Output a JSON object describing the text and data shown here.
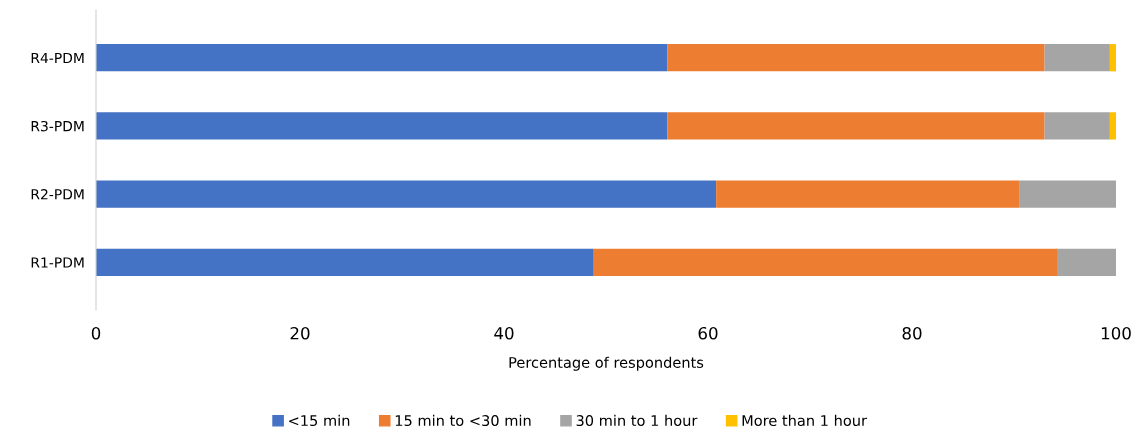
{
  "chart_data": {
    "type": "bar",
    "orientation": "horizontal",
    "stacked": true,
    "categories": [
      "R4-PDM",
      "R3-PDM",
      "R2-PDM",
      "R1-PDM"
    ],
    "series": [
      {
        "name": "<15 min",
        "color": "#4472c4",
        "values": [
          56.0,
          56.0,
          60.8,
          48.8
        ]
      },
      {
        "name": "15 min to <30 min",
        "color": "#ed7d31",
        "values": [
          37.0,
          37.0,
          29.7,
          45.5
        ]
      },
      {
        "name": "30 min to 1 hour",
        "color": "#a5a5a5",
        "values": [
          6.4,
          6.4,
          9.5,
          5.7
        ]
      },
      {
        "name": "More than 1 hour",
        "color": "#ffc000",
        "values": [
          0.6,
          0.6,
          null,
          null
        ]
      }
    ],
    "xlabel": "Percentage of respondents",
    "xlim": [
      0,
      100
    ],
    "xticks": [
      0,
      20,
      40,
      60,
      80,
      100
    ],
    "grid": false,
    "legend": "bottom"
  }
}
